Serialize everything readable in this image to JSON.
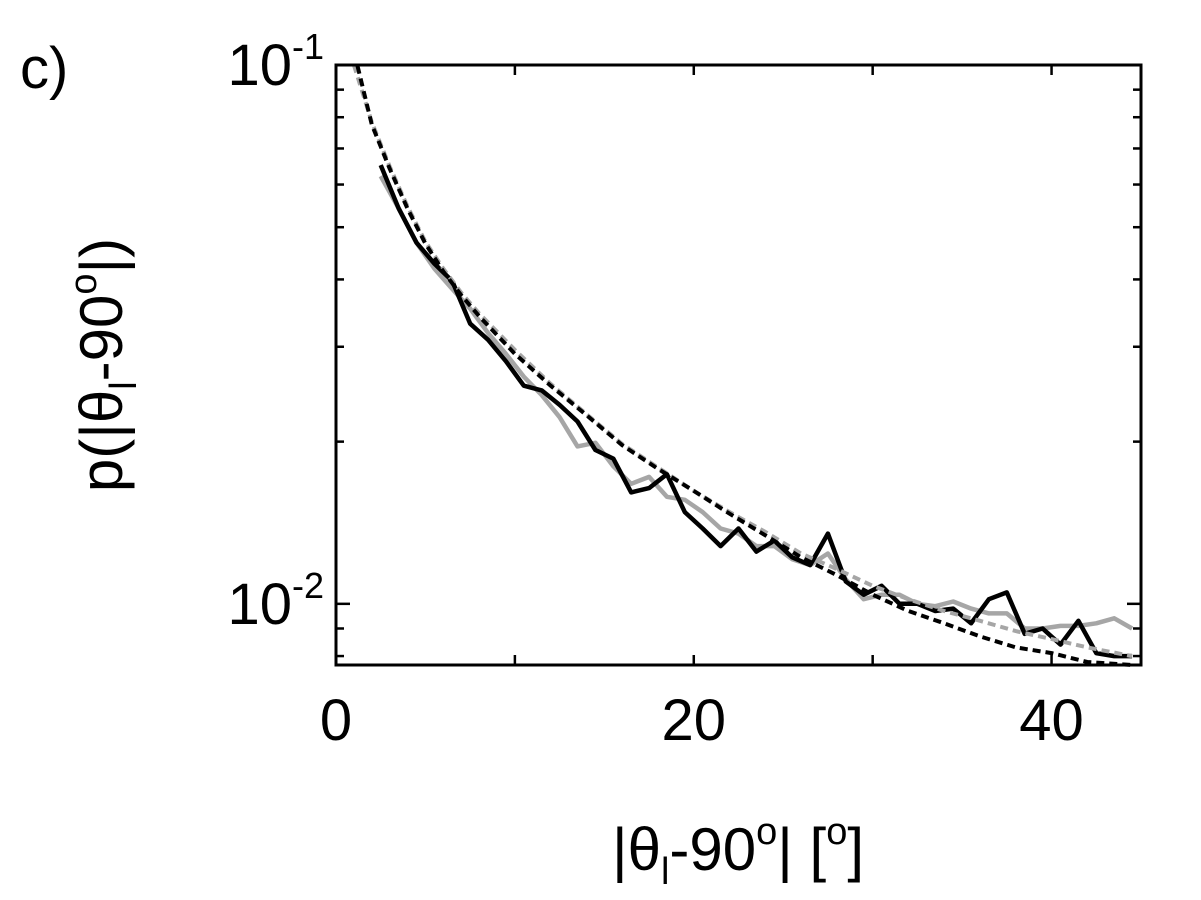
{
  "panel_label": "c)",
  "colors": {
    "black_series": "#000000",
    "gray_series": "#a6a6a6",
    "axes": "#000000"
  },
  "chart_data": {
    "type": "line",
    "xlabel": {
      "pre": "|θ",
      "sub": "l",
      "mid": "-90",
      "sup": "o",
      "post": "| [",
      "sup2": "o",
      "end": "]"
    },
    "ylabel": {
      "pre": "p(|θ",
      "sub": "l",
      "mid": "-90",
      "sup": "o",
      "end": "|)"
    },
    "x_scale": "linear",
    "y_scale": "log",
    "xlim": [
      0,
      45
    ],
    "ylim": [
      0.0077,
      0.1
    ],
    "x_ticks": [
      0,
      20,
      40
    ],
    "x_tick_labels": [
      "0",
      "20",
      "40"
    ],
    "y_ticks": [
      {
        "value": 0.1,
        "base": "10",
        "exp": "-1"
      },
      {
        "value": 0.01,
        "base": "10",
        "exp": "-2"
      }
    ],
    "grid": false,
    "series": [
      {
        "style": "solid",
        "color": "black",
        "points": [
          [
            2.5,
            0.0652
          ],
          [
            3.5,
            0.0542
          ],
          [
            4.5,
            0.0468
          ],
          [
            5.5,
            0.0428
          ],
          [
            6.5,
            0.0397
          ],
          [
            7.5,
            0.0331
          ],
          [
            8.5,
            0.0309
          ],
          [
            9.5,
            0.0282
          ],
          [
            10.5,
            0.0254
          ],
          [
            11.5,
            0.0249
          ],
          [
            12.5,
            0.0234
          ],
          [
            13.5,
            0.0218
          ],
          [
            14.5,
            0.0193
          ],
          [
            15.5,
            0.0186
          ],
          [
            16.5,
            0.0161
          ],
          [
            17.5,
            0.0164
          ],
          [
            18.5,
            0.0174
          ],
          [
            19.5,
            0.0148
          ],
          [
            20.5,
            0.0138
          ],
          [
            21.5,
            0.0128
          ],
          [
            22.5,
            0.0138
          ],
          [
            23.5,
            0.0125
          ],
          [
            24.5,
            0.0131
          ],
          [
            25.5,
            0.0122
          ],
          [
            26.5,
            0.0118
          ],
          [
            27.5,
            0.0135
          ],
          [
            28.5,
            0.011
          ],
          [
            29.5,
            0.0104
          ],
          [
            30.5,
            0.0108
          ],
          [
            31.5,
            0.01
          ],
          [
            32.5,
            0.01
          ],
          [
            33.5,
            0.0097
          ],
          [
            34.5,
            0.0098
          ],
          [
            35.5,
            0.0092
          ],
          [
            36.5,
            0.0102
          ],
          [
            37.5,
            0.0105
          ],
          [
            38.5,
            0.0088
          ],
          [
            39.5,
            0.009
          ],
          [
            40.5,
            0.0084
          ],
          [
            41.5,
            0.0093
          ],
          [
            42.5,
            0.0081
          ],
          [
            43.5,
            0.008
          ],
          [
            44.5,
            0.008
          ]
        ]
      },
      {
        "style": "solid",
        "color": "gray",
        "points": [
          [
            2.5,
            0.0622
          ],
          [
            3.5,
            0.0542
          ],
          [
            4.5,
            0.0468
          ],
          [
            5.5,
            0.0419
          ],
          [
            6.5,
            0.0384
          ],
          [
            7.5,
            0.0353
          ],
          [
            8.5,
            0.0318
          ],
          [
            9.5,
            0.0291
          ],
          [
            10.5,
            0.0264
          ],
          [
            11.5,
            0.0244
          ],
          [
            12.5,
            0.0222
          ],
          [
            13.5,
            0.0196
          ],
          [
            14.5,
            0.0199
          ],
          [
            15.5,
            0.018
          ],
          [
            16.5,
            0.0167
          ],
          [
            17.5,
            0.0172
          ],
          [
            18.5,
            0.0158
          ],
          [
            19.5,
            0.0156
          ],
          [
            20.5,
            0.0148
          ],
          [
            21.5,
            0.0138
          ],
          [
            22.5,
            0.0135
          ],
          [
            23.5,
            0.0128
          ],
          [
            24.5,
            0.0128
          ],
          [
            25.5,
            0.0121
          ],
          [
            26.5,
            0.0118
          ],
          [
            27.5,
            0.0124
          ],
          [
            28.5,
            0.0111
          ],
          [
            29.5,
            0.0102
          ],
          [
            30.5,
            0.0104
          ],
          [
            31.5,
            0.0104
          ],
          [
            32.5,
            0.01
          ],
          [
            33.5,
            0.0099
          ],
          [
            34.5,
            0.0101
          ],
          [
            35.5,
            0.0098
          ],
          [
            36.5,
            0.0096
          ],
          [
            37.5,
            0.0096
          ],
          [
            38.5,
            0.009
          ],
          [
            39.5,
            0.009
          ],
          [
            40.5,
            0.0091
          ],
          [
            41.5,
            0.0091
          ],
          [
            42.5,
            0.0092
          ],
          [
            43.5,
            0.0094
          ],
          [
            44.5,
            0.009
          ]
        ]
      },
      {
        "style": "dashed",
        "color": "black",
        "points": [
          [
            1.2,
            0.0996
          ],
          [
            2,
            0.0775
          ],
          [
            3,
            0.0642
          ],
          [
            4,
            0.0541
          ],
          [
            5,
            0.0466
          ],
          [
            6,
            0.0414
          ],
          [
            7,
            0.0374
          ],
          [
            8,
            0.0342
          ],
          [
            10,
            0.0291
          ],
          [
            12,
            0.0254
          ],
          [
            14,
            0.0224
          ],
          [
            16,
            0.0197
          ],
          [
            18,
            0.0178
          ],
          [
            20,
            0.0162
          ],
          [
            22,
            0.0147
          ],
          [
            24,
            0.0134
          ],
          [
            26,
            0.0122
          ],
          [
            28,
            0.0113
          ],
          [
            30,
            0.0104
          ],
          [
            32,
            0.0097
          ],
          [
            34,
            0.0092
          ],
          [
            36,
            0.0087
          ],
          [
            38,
            0.0083
          ],
          [
            40,
            0.0081
          ],
          [
            42,
            0.0078
          ],
          [
            44.5,
            0.0077
          ]
        ]
      },
      {
        "style": "dashed",
        "color": "gray",
        "points": [
          [
            1.0,
            0.1
          ],
          [
            2,
            0.0783
          ],
          [
            3,
            0.0648
          ],
          [
            4,
            0.0546
          ],
          [
            5,
            0.047
          ],
          [
            6,
            0.0419
          ],
          [
            7,
            0.0378
          ],
          [
            8,
            0.0346
          ],
          [
            10,
            0.0296
          ],
          [
            12,
            0.0256
          ],
          [
            14,
            0.0225
          ],
          [
            16,
            0.0198
          ],
          [
            18,
            0.0179
          ],
          [
            20,
            0.0162
          ],
          [
            22,
            0.0148
          ],
          [
            24,
            0.0136
          ],
          [
            26,
            0.0124
          ],
          [
            28,
            0.0116
          ],
          [
            30,
            0.0108
          ],
          [
            32,
            0.0102
          ],
          [
            34,
            0.0097
          ],
          [
            36,
            0.0093
          ],
          [
            38,
            0.0089
          ],
          [
            40,
            0.0086
          ],
          [
            42,
            0.0083
          ],
          [
            44.5,
            0.008
          ]
        ]
      }
    ]
  }
}
